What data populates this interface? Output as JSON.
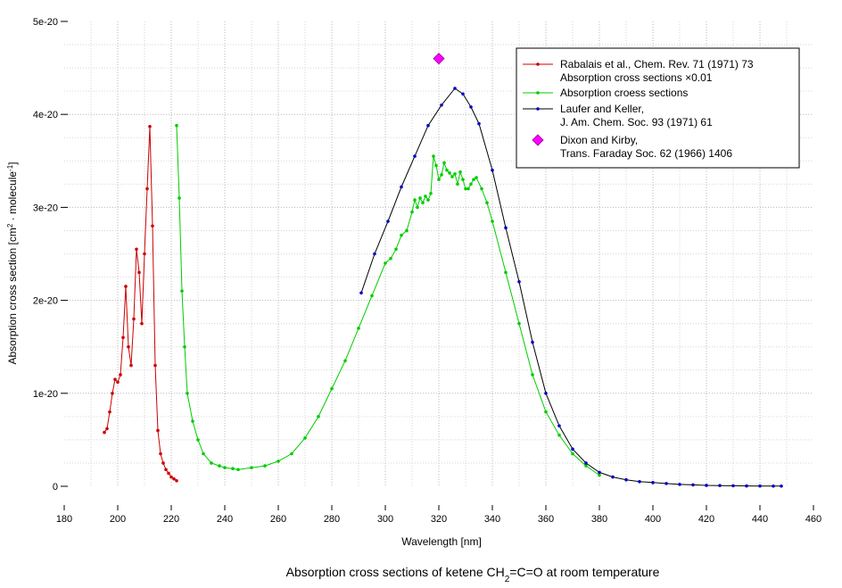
{
  "chart_data": {
    "type": "line",
    "title": "Absorption cross sections of ketene CH2=C=O at room temperature",
    "caption": {
      "before": "Absorption cross sections of ketene CH",
      "sub": "2",
      "after": "=C=O at room temperature"
    },
    "xlabel": "Wavelength [nm]",
    "ylabel": {
      "part1": "Absorption cross section [cm",
      "sup1": "2",
      "part2": " · molecule",
      "sup2": "-1",
      "part3": "]"
    },
    "xlim": [
      180,
      460
    ],
    "ylim": [
      0,
      5e-20
    ],
    "x_ticks": [
      180,
      200,
      220,
      240,
      260,
      280,
      300,
      320,
      340,
      360,
      380,
      400,
      420,
      440,
      460
    ],
    "x_tick_labels": [
      "180",
      "200",
      "220",
      "240",
      "260",
      "280",
      "300",
      "320",
      "340",
      "360",
      "380",
      "400",
      "420",
      "440",
      "460"
    ],
    "y_ticks": [
      0,
      1e-20,
      2e-20,
      3e-20,
      4e-20,
      5e-20
    ],
    "y_tick_labels": [
      "0",
      "1e-20",
      "2e-20",
      "3e-20",
      "4e-20",
      "5e-20"
    ],
    "grid": true,
    "legend_position": "top-right",
    "series": [
      {
        "name": "Rabalais et al., Chem. Rev. 71 (1971) 73",
        "name_line2": "Absorption cross sections ×0.01",
        "color": "#cc0000",
        "marker": "dot",
        "x": [
          195,
          196,
          197,
          198,
          199,
          200,
          201,
          202,
          203,
          204,
          205,
          206,
          207,
          208,
          209,
          210,
          211,
          212,
          213,
          214,
          215,
          216,
          217,
          218,
          219,
          220,
          221,
          222
        ],
        "y": [
          5.8e-21,
          6.2e-21,
          8e-21,
          1e-20,
          1.15e-20,
          1.12e-20,
          1.2e-20,
          1.6e-20,
          2.15e-20,
          1.5e-20,
          1.3e-20,
          1.8e-20,
          2.55e-20,
          2.3e-20,
          1.75e-20,
          2.5e-20,
          3.2e-20,
          3.87e-20,
          2.8e-20,
          1.3e-20,
          6e-21,
          3.5e-21,
          2.5e-21,
          1.8e-21,
          1.4e-21,
          1e-21,
          8e-22,
          6e-22
        ]
      },
      {
        "name": "Absorption croess sections",
        "color": "#00cc00",
        "marker": "dot",
        "x": [
          222,
          223,
          224,
          225,
          226,
          228,
          230,
          232,
          235,
          238,
          240,
          243,
          245,
          250,
          255,
          260,
          265,
          270,
          275,
          280,
          285,
          290,
          295,
          300,
          302,
          304,
          306,
          308,
          310,
          311,
          312,
          313,
          314,
          315,
          316,
          317,
          318,
          319,
          320,
          321,
          322,
          323,
          324,
          325,
          326,
          327,
          328,
          329,
          330,
          331,
          332,
          333,
          334,
          336,
          338,
          340,
          345,
          350,
          355,
          360,
          365,
          370,
          375,
          380
        ],
        "y": [
          3.88e-20,
          3.1e-20,
          2.1e-20,
          1.5e-20,
          1e-20,
          7e-21,
          5e-21,
          3.5e-21,
          2.5e-21,
          2.2e-21,
          2e-21,
          1.9e-21,
          1.8e-21,
          2e-21,
          2.2e-21,
          2.7e-21,
          3.5e-21,
          5.2e-21,
          7.5e-21,
          1.05e-20,
          1.35e-20,
          1.7e-20,
          2.05e-20,
          2.4e-20,
          2.45e-20,
          2.55e-20,
          2.7e-20,
          2.75e-20,
          2.95e-20,
          3.08e-20,
          3e-20,
          3.1e-20,
          3.05e-20,
          3.12e-20,
          3.08e-20,
          3.15e-20,
          3.55e-20,
          3.45e-20,
          3.3e-20,
          3.35e-20,
          3.48e-20,
          3.4e-20,
          3.37e-20,
          3.33e-20,
          3.36e-20,
          3.25e-20,
          3.38e-20,
          3.3e-20,
          3.2e-20,
          3.2e-20,
          3.25e-20,
          3.3e-20,
          3.32e-20,
          3.2e-20,
          3.05e-20,
          2.85e-20,
          2.3e-20,
          1.75e-20,
          1.2e-20,
          8e-21,
          5.5e-21,
          3.5e-21,
          2.2e-21,
          1.2e-21
        ]
      },
      {
        "name": "Laufer and Keller,",
        "name_line2": "J. Am. Chem. Soc. 93 (1971) 61",
        "color": "#000000",
        "marker_color": "#0000cc",
        "marker": "dot",
        "x": [
          291,
          296,
          301,
          306,
          311,
          316,
          321,
          326,
          329,
          332,
          335,
          340,
          345,
          350,
          355,
          360,
          365,
          370,
          375,
          380,
          385,
          390,
          395,
          400,
          405,
          410,
          415,
          420,
          425,
          430,
          435,
          440,
          445,
          448
        ],
        "y": [
          2.08e-20,
          2.5e-20,
          2.85e-20,
          3.22e-20,
          3.55e-20,
          3.88e-20,
          4.1e-20,
          4.28e-20,
          4.22e-20,
          4.08e-20,
          3.9e-20,
          3.4e-20,
          2.78e-20,
          2.2e-20,
          1.55e-20,
          1e-20,
          6.5e-21,
          4e-21,
          2.5e-21,
          1.5e-21,
          1e-21,
          7e-22,
          5e-22,
          4e-22,
          3e-22,
          2e-22,
          1.5e-22,
          1e-22,
          8e-23,
          6e-23,
          4e-23,
          3e-23,
          2e-23,
          2e-23
        ]
      },
      {
        "name": "Dixon and Kirby,",
        "name_line2": "Trans. Faraday Soc. 62 (1966) 1406",
        "color": "#ff00ff",
        "marker": "diamond",
        "x": [
          320
        ],
        "y": [
          4.6e-20
        ]
      }
    ]
  }
}
